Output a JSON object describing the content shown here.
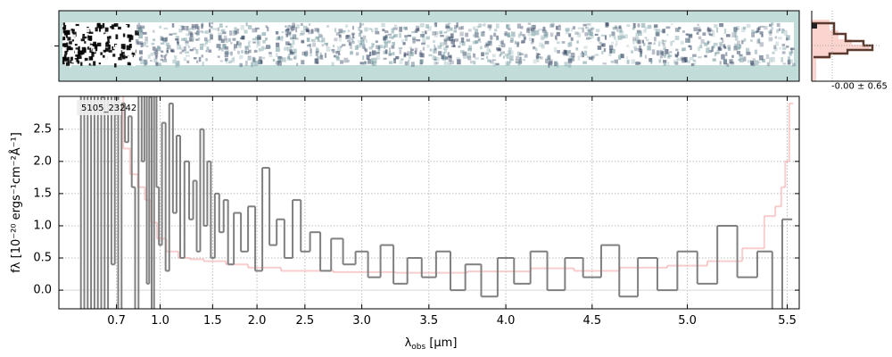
{
  "chart_data": {
    "type": "step",
    "annotation": "5105_23242",
    "hist_label": "-0.00 ± 0.65",
    "xlabel": {
      "symbol": "λ",
      "sub": "obs",
      "unit": " [μm]"
    },
    "ylabel": "fλ [10⁻²⁰ ergs⁻¹cm⁻²Å⁻¹]",
    "xscale": "prism",
    "xlim": [
      0.36,
      5.56
    ],
    "ylim": [
      -0.29,
      3.01
    ],
    "xticks": [
      0.7,
      {
        "value": 1,
        "label": "1.0"
      },
      1.5,
      {
        "value": 2,
        "label": "2.0"
      },
      2.5,
      {
        "value": 3,
        "label": "3.0"
      },
      3.5,
      {
        "value": 4,
        "label": "4.0"
      },
      4.5,
      {
        "value": 5,
        "label": "5.0"
      },
      5.5
    ],
    "yticks": [
      {
        "value": 0,
        "label": "0.0"
      },
      0.5,
      {
        "value": 1,
        "label": "1.0"
      },
      1.5,
      {
        "value": 2,
        "label": "2.0"
      },
      2.5
    ],
    "grid": true,
    "series": [
      {
        "color": "#f4a6a6",
        "x": [
          0.72,
          0.76,
          0.8,
          0.85,
          0.9,
          0.95,
          1.0,
          1.1,
          1.2,
          1.3,
          1.5,
          1.8,
          2.0,
          2.5,
          3.0,
          3.5,
          4.0,
          4.3,
          4.5,
          4.8,
          5.0,
          5.2,
          5.35,
          5.42,
          5.46,
          5.48,
          5.5,
          5.52
        ],
        "values": [
          3.1,
          2.2,
          1.8,
          1.6,
          1.4,
          1.05,
          0.8,
          0.6,
          0.5,
          0.48,
          0.45,
          0.4,
          0.35,
          0.3,
          0.28,
          0.27,
          0.29,
          0.34,
          0.3,
          0.35,
          0.38,
          0.45,
          0.65,
          1.15,
          1.3,
          1.6,
          2.0,
          2.9
        ]
      },
      {
        "color": "#808080",
        "x": [
          0.48,
          0.5,
          0.52,
          0.54,
          0.56,
          0.58,
          0.6,
          0.62,
          0.64,
          0.66,
          0.68,
          0.7,
          0.72,
          0.74,
          0.76,
          0.78,
          0.8,
          0.82,
          0.84,
          0.86,
          0.88,
          0.9,
          0.92,
          0.94,
          0.96,
          0.98,
          1.0,
          1.03,
          1.06,
          1.09,
          1.12,
          1.15,
          1.18,
          1.22,
          1.26,
          1.3,
          1.34,
          1.38,
          1.42,
          1.46,
          1.5,
          1.55,
          1.6,
          1.65,
          1.7,
          1.78,
          1.86,
          1.94,
          2.02,
          2.1,
          2.18,
          2.26,
          2.34,
          2.42,
          2.5,
          2.6,
          2.7,
          2.8,
          2.9,
          3.0,
          3.1,
          3.2,
          3.3,
          3.4,
          3.5,
          3.6,
          3.7,
          3.8,
          3.9,
          4.0,
          4.1,
          4.2,
          4.3,
          4.4,
          4.5,
          4.6,
          4.7,
          4.8,
          4.9,
          5.0,
          5.1,
          5.2,
          5.3,
          5.4,
          5.45,
          5.5
        ],
        "values": [
          -0.5,
          3.5,
          -0.4,
          3.2,
          -0.6,
          3.4,
          -0.3,
          3.0,
          -0.5,
          3.3,
          0.4,
          3.1,
          -0.4,
          2.9,
          2.3,
          2.7,
          1.6,
          -0.4,
          3.2,
          2.0,
          3.4,
          0.1,
          3.0,
          -0.5,
          3.2,
          1.6,
          0.7,
          2.6,
          0.3,
          2.9,
          1.2,
          2.4,
          0.5,
          2.0,
          1.1,
          1.7,
          0.6,
          2.5,
          1.0,
          2.0,
          0.5,
          1.5,
          0.9,
          1.4,
          0.4,
          1.2,
          0.6,
          1.3,
          0.3,
          1.9,
          0.7,
          1.1,
          0.5,
          1.4,
          0.6,
          0.9,
          0.3,
          0.8,
          0.4,
          0.6,
          0.2,
          0.7,
          0.1,
          0.5,
          0.2,
          0.6,
          0.0,
          0.4,
          -0.1,
          0.5,
          0.1,
          0.6,
          0.0,
          0.5,
          0.2,
          0.7,
          -0.1,
          0.5,
          0.0,
          0.6,
          0.1,
          1.0,
          0.2,
          0.6,
          -0.3,
          1.1
        ]
      }
    ]
  }
}
